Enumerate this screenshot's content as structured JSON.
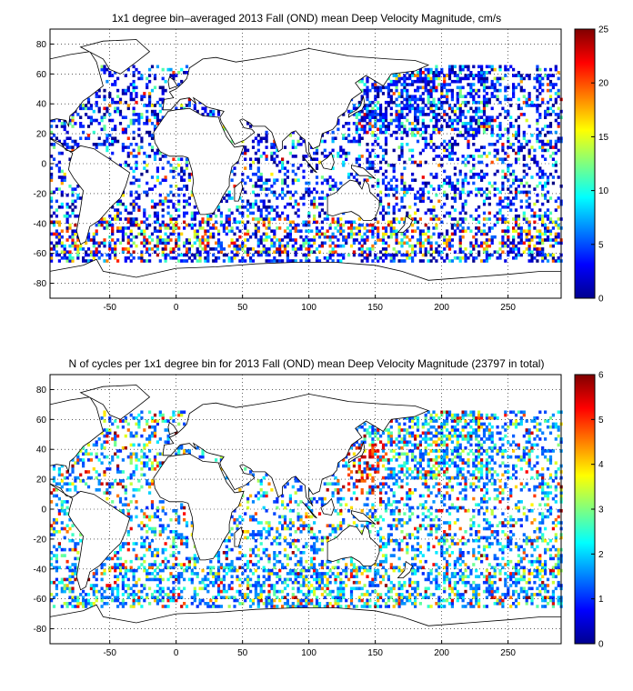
{
  "chart_data": [
    {
      "type": "heatmap",
      "title": "1x1 degree bin–averaged 2013 Fall (OND) mean Deep Velocity Magnitude, cm/s",
      "xlabel": "",
      "ylabel": "",
      "xlim": [
        -95,
        290
      ],
      "ylim": [
        -90,
        90
      ],
      "x_ticks": [
        -50,
        0,
        50,
        100,
        150,
        200,
        250
      ],
      "y_ticks": [
        80,
        60,
        40,
        20,
        0,
        -20,
        -40,
        -60,
        -80
      ],
      "grid": true,
      "colorbar": {
        "min": 0,
        "max": 25,
        "ticks": [
          0,
          5,
          10,
          15,
          20,
          25
        ],
        "colormap": "jet"
      }
    },
    {
      "type": "heatmap",
      "title": "N of cycles per 1x1 degree bin for 2013 Fall (OND) mean Deep Velocity Magnitude (23797 in total)",
      "xlabel": "",
      "ylabel": "",
      "xlim": [
        -95,
        290
      ],
      "ylim": [
        -90,
        90
      ],
      "x_ticks": [
        -50,
        0,
        50,
        100,
        150,
        200,
        250
      ],
      "y_ticks": [
        80,
        60,
        40,
        20,
        0,
        -20,
        -40,
        -60,
        -80
      ],
      "grid": true,
      "colorbar": {
        "min": 0,
        "max": 6,
        "ticks": [
          0,
          1,
          2,
          3,
          4,
          5,
          6
        ],
        "colormap": "jet"
      }
    }
  ]
}
